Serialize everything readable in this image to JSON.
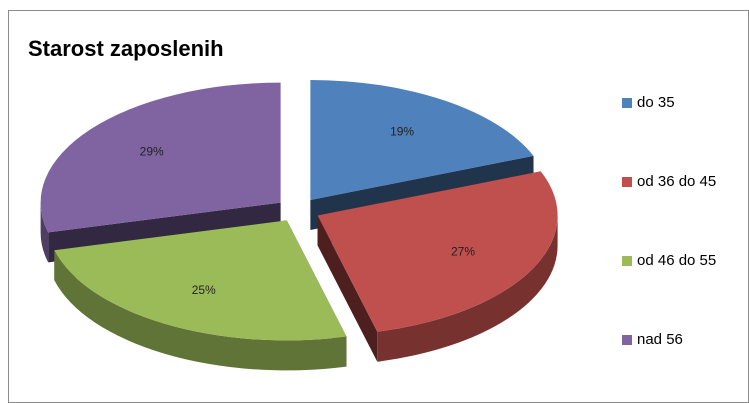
{
  "chart_data": {
    "type": "pie",
    "title": "Starost zaposlenih",
    "categories": [
      "do 35",
      "od 36 do 45",
      "od 46 do 55",
      "nad 56"
    ],
    "values": [
      19,
      27,
      25,
      29
    ],
    "value_labels": [
      "19%",
      "27%",
      "25%",
      "29%"
    ],
    "colors": [
      "#4f81bd",
      "#c0504d",
      "#9bbb59",
      "#8064a2"
    ],
    "legend": "right"
  }
}
